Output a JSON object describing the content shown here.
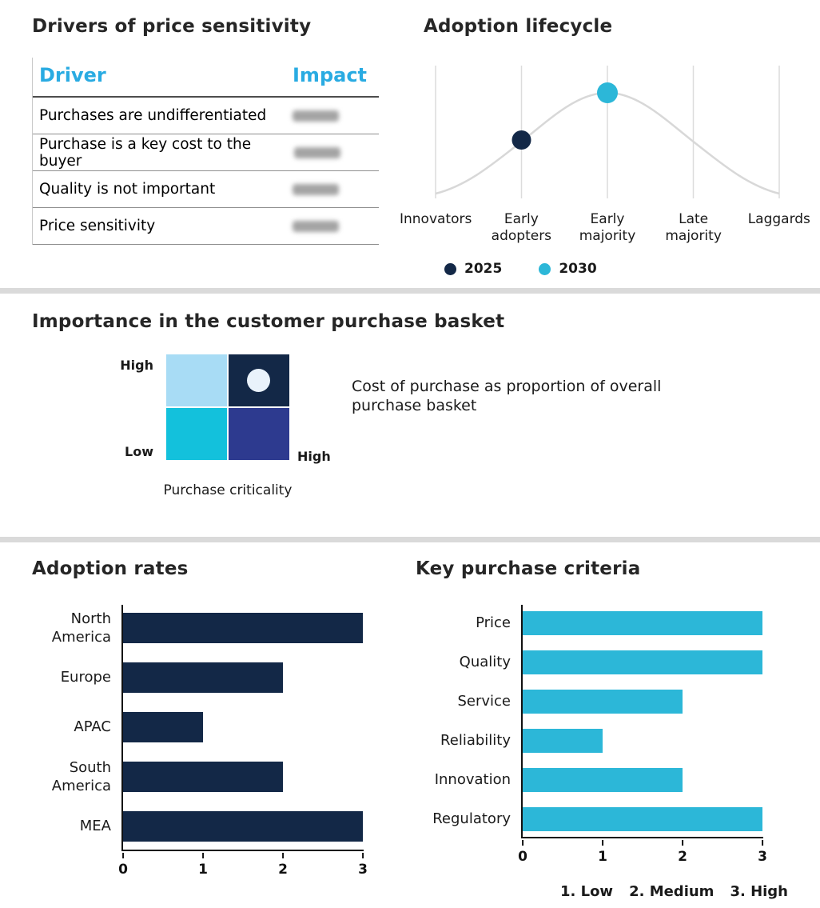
{
  "colors": {
    "navy": "#132847",
    "cyan": "#2CB7D8",
    "cyan_header": "#29ABE2",
    "indigo": "#2D3A8F",
    "light_blue": "#A8DCF5",
    "teal": "#13C1DC",
    "pale_dot": "#E9F2FB",
    "curve_gray": "#D8D8D8",
    "divider": "#DADADA"
  },
  "drivers": {
    "title": "Drivers of price sensitivity",
    "col_driver": "Driver",
    "col_impact": "Impact",
    "rows": [
      {
        "driver": "Purchases are undifferentiated"
      },
      {
        "driver": "Purchase is a key cost to the buyer"
      },
      {
        "driver": "Quality is not important"
      },
      {
        "driver": "Price sensitivity"
      }
    ]
  },
  "lifecycle": {
    "title": "Adoption lifecycle"
  },
  "basket": {
    "title": "Importance in the customer purchase basket",
    "y_max": "High",
    "y_min": "Low",
    "x_max": "High",
    "x_label": "Purchase criticality",
    "annotation": "Cost of purchase as proportion of overall purchase basket"
  },
  "adoption": {
    "title": "Adoption rates"
  },
  "criteria": {
    "title": "Key purchase criteria",
    "footnote": [
      "1. Low",
      "2. Medium",
      "3. High"
    ]
  },
  "chart_data": [
    {
      "type": "line",
      "title": "Adoption lifecycle",
      "x": [
        "Innovators",
        "Early adopters",
        "Early majority",
        "Late majority",
        "Laggards"
      ],
      "shape": "bell curve peaking at Early majority",
      "grid": "vertical gridlines at each category",
      "points": [
        {
          "label": "2025",
          "x": "Early adopters",
          "color": "#132847"
        },
        {
          "label": "2030",
          "x": "Early majority",
          "color": "#2CB7D8"
        }
      ],
      "legend_position": "bottom"
    },
    {
      "type": "bar",
      "title": "Adoption rates",
      "orientation": "horizontal",
      "categories": [
        "North America",
        "Europe",
        "APAC",
        "South America",
        "MEA"
      ],
      "values": [
        3,
        2,
        1,
        2,
        3
      ],
      "xlim": [
        0,
        3
      ],
      "ticks": [
        0,
        1,
        2,
        3
      ],
      "color": "#132847"
    },
    {
      "type": "bar",
      "title": "Key purchase criteria",
      "orientation": "horizontal",
      "categories": [
        "Price",
        "Quality",
        "Service",
        "Reliability",
        "Innovation",
        "Regulatory"
      ],
      "values": [
        3,
        3,
        2,
        1,
        2,
        3
      ],
      "xlim": [
        0,
        3
      ],
      "ticks": [
        0,
        1,
        2,
        3
      ],
      "color": "#2CB7D8",
      "scale_note": "1. Low  2. Medium  3. High"
    },
    {
      "type": "heatmap",
      "title": "Importance in the customer purchase basket",
      "xlabel": "Purchase criticality",
      "x_range": [
        "",
        "High"
      ],
      "y_range": [
        "Low",
        "High"
      ],
      "cells": [
        {
          "row": 0,
          "col": 0,
          "color": "#A8DCF5"
        },
        {
          "row": 0,
          "col": 1,
          "color": "#132847",
          "marker": true
        },
        {
          "row": 1,
          "col": 0,
          "color": "#13C1DC"
        },
        {
          "row": 1,
          "col": 1,
          "color": "#2D3A8F"
        }
      ],
      "marker_color": "#E9F2FB",
      "annotation": "Cost of purchase as proportion of overall purchase basket"
    }
  ]
}
